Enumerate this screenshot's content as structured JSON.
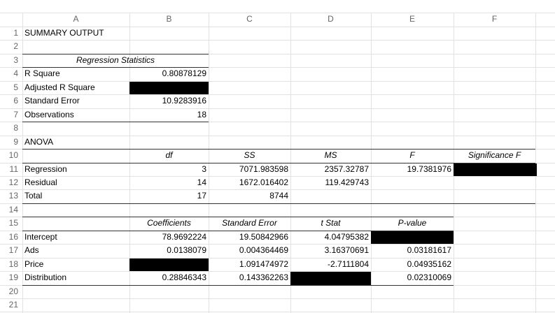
{
  "column_headers": [
    "A",
    "B",
    "C",
    "D",
    "E",
    "F"
  ],
  "row_numbers": [
    1,
    2,
    3,
    4,
    5,
    6,
    7,
    8,
    9,
    10,
    11,
    12,
    13,
    14,
    15,
    16,
    17,
    18,
    19,
    20,
    21
  ],
  "cells": [
    [
      "SUMMARY OUTPUT",
      null,
      null,
      null,
      null,
      null
    ],
    [
      null,
      null,
      null,
      null,
      null,
      null
    ],
    [
      "Regression Statistics",
      null,
      null,
      null,
      null,
      null
    ],
    [
      "R Square",
      "0.80878129",
      null,
      null,
      null,
      null
    ],
    [
      "Adjusted R Square",
      null,
      null,
      null,
      null,
      null
    ],
    [
      "Standard Error",
      "10.9283916",
      null,
      null,
      null,
      null
    ],
    [
      "Observations",
      "18",
      null,
      null,
      null,
      null
    ],
    [
      null,
      null,
      null,
      null,
      null,
      null
    ],
    [
      "ANOVA",
      null,
      null,
      null,
      null,
      null
    ],
    [
      null,
      "df",
      "SS",
      "MS",
      "F",
      "Significance F"
    ],
    [
      "Regression",
      "3",
      "7071.983598",
      "2357.32787",
      "19.7381976",
      null
    ],
    [
      "Residual",
      "14",
      "1672.016402",
      "119.429743",
      null,
      null
    ],
    [
      "Total",
      "17",
      "8744",
      null,
      null,
      null
    ],
    [
      null,
      null,
      null,
      null,
      null,
      null
    ],
    [
      null,
      "Coefficients",
      "Standard Error",
      "t Stat",
      "P-value",
      null
    ],
    [
      "Intercept",
      "78.9692224",
      "19.50842966",
      "4.04795382",
      null,
      null
    ],
    [
      "Ads",
      "0.0138079",
      "0.004364469",
      "3.16370691",
      "0.03181617",
      null
    ],
    [
      "Price",
      null,
      "1.091474972",
      "-2.7111804",
      "0.04935162",
      null
    ],
    [
      "Distribution",
      "0.28846343",
      "0.143362263",
      null,
      "0.02310069",
      null
    ],
    [
      null,
      null,
      null,
      null,
      null,
      null
    ],
    [
      null,
      null,
      null,
      null,
      null,
      null
    ]
  ]
}
